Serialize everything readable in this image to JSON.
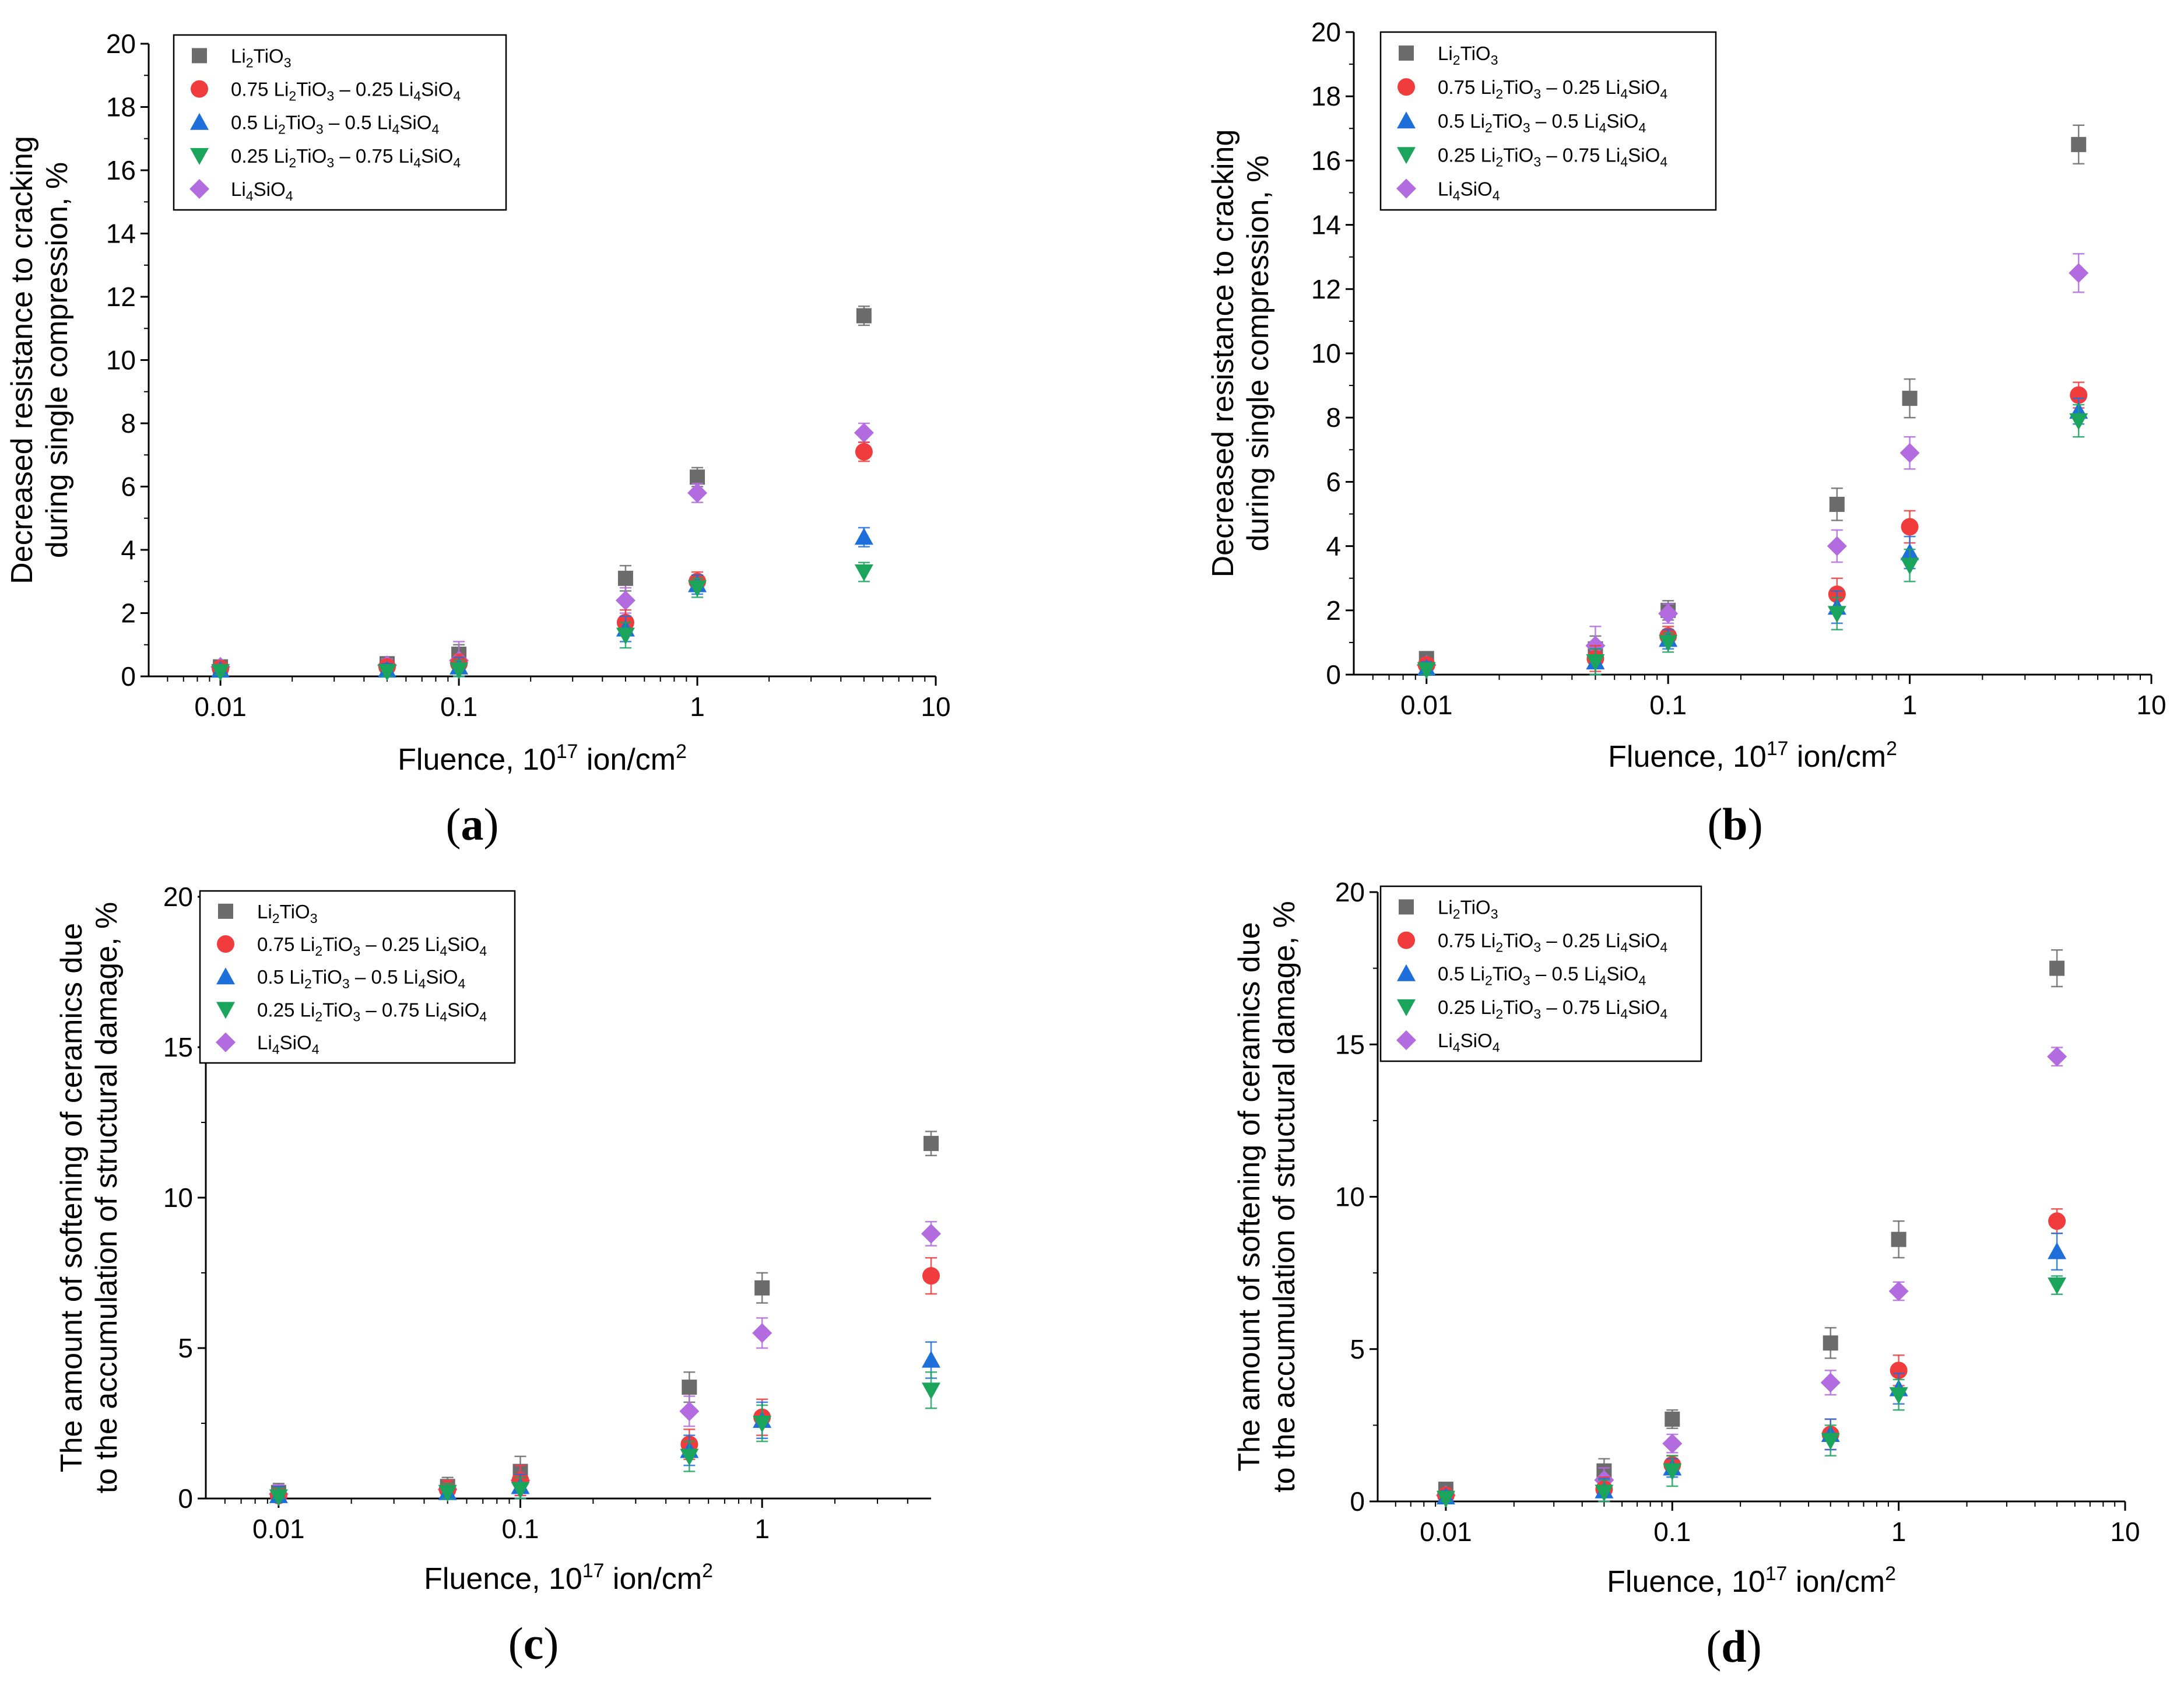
{
  "figure": {
    "legend_labels": [
      {
        "pre": "Li",
        "s1": "2",
        "mid": "TiO",
        "s2": "3",
        "tail": ""
      },
      {
        "pre": "0.75 Li",
        "s1": "2",
        "mid": "TiO",
        "s2": "3",
        "tail": " – 0.25 Li",
        "s3": "4",
        "mid2": "SiO",
        "s4": "4"
      },
      {
        "pre": "0.5 Li",
        "s1": "2",
        "mid": "TiO",
        "s2": "3",
        "tail": " – 0.5 Li",
        "s3": "4",
        "mid2": "SiO",
        "s4": "4"
      },
      {
        "pre": "0.25 Li",
        "s1": "2",
        "mid": "TiO",
        "s2": "3",
        "tail": " – 0.75 Li",
        "s3": "4",
        "mid2": "SiO",
        "s4": "4"
      },
      {
        "pre": "Li",
        "s1": "4",
        "mid": "SiO",
        "s2": "4",
        "tail": ""
      }
    ],
    "series_colors": [
      "#6b6b6b",
      "#f03c3c",
      "#1e6fd9",
      "#1ba55c",
      "#b36be0"
    ],
    "series_markers": [
      "square",
      "circle",
      "triangle-up",
      "triangle-down",
      "diamond"
    ],
    "xlabel": {
      "text": "Fluence, 10",
      "sup": "17",
      "text2": " ion/cm",
      "sup2": "2"
    }
  },
  "chart_data": [
    {
      "panel": "(a)",
      "type": "scatter",
      "xscale": "log",
      "xlim": [
        0.005,
        10
      ],
      "ylim": [
        0,
        20
      ],
      "yticks": [
        0,
        2,
        4,
        6,
        8,
        10,
        12,
        14,
        16,
        18,
        20
      ],
      "xticks": [
        0.01,
        0.1,
        1,
        10
      ],
      "xtick_labels": [
        "0.01",
        "0.1",
        "1",
        "10"
      ],
      "ylabel_lines": [
        "Decreased resistance to cracking",
        "during single compression, %"
      ],
      "legend_position": "top-left",
      "x": [
        0.01,
        0.05,
        0.1,
        0.5,
        1,
        5
      ],
      "series": [
        {
          "name": "Li2TiO3",
          "values": [
            0.3,
            0.4,
            0.7,
            3.1,
            6.3,
            11.4
          ],
          "errors": [
            0.1,
            0.2,
            0.3,
            0.4,
            0.3,
            0.3
          ]
        },
        {
          "name": "0.75 Li2TiO3 – 0.25 Li4SiO4",
          "values": [
            0.25,
            0.3,
            0.4,
            1.7,
            3.0,
            7.1
          ],
          "errors": [
            0.1,
            0.2,
            0.3,
            0.4,
            0.3,
            0.3
          ]
        },
        {
          "name": "0.5 Li2TiO3 – 0.5 Li4SiO4",
          "values": [
            0.2,
            0.2,
            0.3,
            1.5,
            2.9,
            4.4
          ],
          "errors": [
            0.1,
            0.2,
            0.3,
            0.4,
            0.3,
            0.3
          ]
        },
        {
          "name": "0.25 Li2TiO3 – 0.75 Li4SiO4",
          "values": [
            0.15,
            0.15,
            0.2,
            1.3,
            2.8,
            3.3
          ],
          "errors": [
            0.1,
            0.2,
            0.3,
            0.4,
            0.3,
            0.3
          ]
        },
        {
          "name": "Li4SiO4",
          "values": [
            0.3,
            0.35,
            0.5,
            2.4,
            5.8,
            7.7
          ],
          "errors": [
            0.1,
            0.2,
            0.6,
            0.4,
            0.3,
            0.3
          ]
        }
      ]
    },
    {
      "panel": "(b)",
      "type": "scatter",
      "xscale": "log",
      "xlim": [
        0.005,
        10
      ],
      "ylim": [
        0,
        20
      ],
      "yticks": [
        0,
        2,
        4,
        6,
        8,
        10,
        12,
        14,
        16,
        18,
        20
      ],
      "xticks": [
        0.01,
        0.1,
        1,
        10
      ],
      "xtick_labels": [
        "0.01",
        "0.1",
        "1",
        "10"
      ],
      "ylabel_lines": [
        "Decreased resistance to cracking",
        "during single compression, %"
      ],
      "legend_position": "top-left",
      "x": [
        0.01,
        0.05,
        0.1,
        0.5,
        1,
        5
      ],
      "series": [
        {
          "name": "Li2TiO3",
          "values": [
            0.5,
            0.8,
            2.0,
            5.3,
            8.6,
            16.5
          ],
          "errors": [
            0.2,
            0.4,
            0.3,
            0.5,
            0.6,
            0.6
          ]
        },
        {
          "name": "0.75 Li2TiO3 – 0.25 Li4SiO4",
          "values": [
            0.3,
            0.5,
            1.2,
            2.5,
            4.6,
            8.7
          ],
          "errors": [
            0.2,
            0.4,
            0.3,
            0.5,
            0.5,
            0.4
          ]
        },
        {
          "name": "0.5 Li2TiO3 – 0.5 Li4SiO4",
          "values": [
            0.2,
            0.4,
            1.1,
            2.1,
            3.8,
            8.2
          ],
          "errors": [
            0.2,
            0.4,
            0.3,
            0.5,
            0.5,
            0.4
          ]
        },
        {
          "name": "0.25 Li2TiO3 – 0.75 Li4SiO4",
          "values": [
            0.15,
            0.4,
            1.0,
            1.9,
            3.4,
            7.9
          ],
          "errors": [
            0.2,
            0.4,
            0.3,
            0.5,
            0.5,
            0.5
          ]
        },
        {
          "name": "Li4SiO4",
          "values": [
            0.3,
            0.9,
            1.9,
            4.0,
            6.9,
            12.5
          ],
          "errors": [
            0.2,
            0.6,
            0.3,
            0.5,
            0.5,
            0.6
          ]
        }
      ]
    },
    {
      "panel": "(c)",
      "type": "scatter",
      "xscale": "log",
      "xlim": [
        0.005,
        5
      ],
      "ylim": [
        0,
        20
      ],
      "yticks": [
        0,
        5,
        10,
        15,
        20
      ],
      "xticks": [
        0.01,
        0.1,
        1
      ],
      "xtick_labels": [
        "0.01",
        "0.1",
        "1"
      ],
      "ylabel_lines": [
        "The amount of softening of ceramics due",
        "to the accumulation of structural damage, %"
      ],
      "legend_position": "top-left",
      "x": [
        0.01,
        0.05,
        0.1,
        0.5,
        1,
        5
      ],
      "series": [
        {
          "name": "Li2TiO3",
          "values": [
            0.2,
            0.4,
            0.9,
            3.7,
            7.0,
            11.8
          ],
          "errors": [
            0.3,
            0.3,
            0.5,
            0.5,
            0.5,
            0.4
          ]
        },
        {
          "name": "0.75 Li2TiO3 – 0.25 Li4SiO4",
          "values": [
            0.1,
            0.3,
            0.6,
            1.8,
            2.7,
            7.4
          ],
          "errors": [
            0.3,
            0.3,
            0.5,
            0.5,
            0.6,
            0.6
          ]
        },
        {
          "name": "0.5 Li2TiO3 – 0.5 Li4SiO4",
          "values": [
            0.1,
            0.2,
            0.4,
            1.6,
            2.6,
            4.6
          ],
          "errors": [
            0.3,
            0.3,
            0.4,
            0.5,
            0.6,
            0.6
          ]
        },
        {
          "name": "0.25 Li2TiO3 – 0.75 Li4SiO4",
          "values": [
            0.05,
            0.2,
            0.3,
            1.4,
            2.5,
            3.6
          ],
          "errors": [
            0.3,
            0.3,
            0.4,
            0.5,
            0.6,
            0.6
          ]
        },
        {
          "name": "Li4SiO4",
          "values": [
            0.15,
            0.3,
            0.6,
            2.9,
            5.5,
            8.8
          ],
          "errors": [
            0.3,
            0.3,
            0.5,
            0.5,
            0.5,
            0.4
          ]
        }
      ]
    },
    {
      "panel": "(d)",
      "type": "scatter",
      "xscale": "log",
      "xlim": [
        0.005,
        10
      ],
      "ylim": [
        0,
        20
      ],
      "yticks": [
        0,
        5,
        10,
        15,
        20
      ],
      "xticks": [
        0.01,
        0.1,
        1,
        10
      ],
      "xtick_labels": [
        "0.01",
        "0.1",
        "1",
        "10"
      ],
      "ylabel_lines": [
        "The amount of softening of ceramics due",
        "to the accumulation of structural damage, %"
      ],
      "legend_position": "top-left",
      "x": [
        0.01,
        0.05,
        0.1,
        0.5,
        1,
        5
      ],
      "series": [
        {
          "name": "Li2TiO3",
          "values": [
            0.4,
            1.0,
            2.7,
            5.2,
            8.6,
            17.5
          ],
          "errors": [
            0.2,
            0.4,
            0.3,
            0.5,
            0.6,
            0.6
          ]
        },
        {
          "name": "0.75 Li2TiO3 – 0.25 Li4SiO4",
          "values": [
            0.2,
            0.4,
            1.2,
            2.2,
            4.3,
            9.2
          ],
          "errors": [
            0.2,
            0.4,
            0.3,
            0.5,
            0.5,
            0.4
          ]
        },
        {
          "name": "0.5 Li2TiO3 – 0.5 Li4SiO4",
          "values": [
            0.15,
            0.35,
            1.1,
            2.2,
            3.7,
            8.2
          ],
          "errors": [
            0.2,
            0.4,
            0.3,
            0.5,
            0.5,
            0.6
          ]
        },
        {
          "name": "0.25 Li2TiO3 – 0.75 Li4SiO4",
          "values": [
            0.1,
            0.3,
            1.0,
            2.0,
            3.5,
            7.1
          ],
          "errors": [
            0.2,
            0.4,
            0.5,
            0.5,
            0.5,
            0.3
          ]
        },
        {
          "name": "Li4SiO4",
          "values": [
            0.2,
            0.7,
            1.9,
            3.9,
            6.9,
            14.6
          ],
          "errors": [
            0.2,
            0.4,
            0.3,
            0.4,
            0.3,
            0.3
          ]
        }
      ]
    }
  ]
}
